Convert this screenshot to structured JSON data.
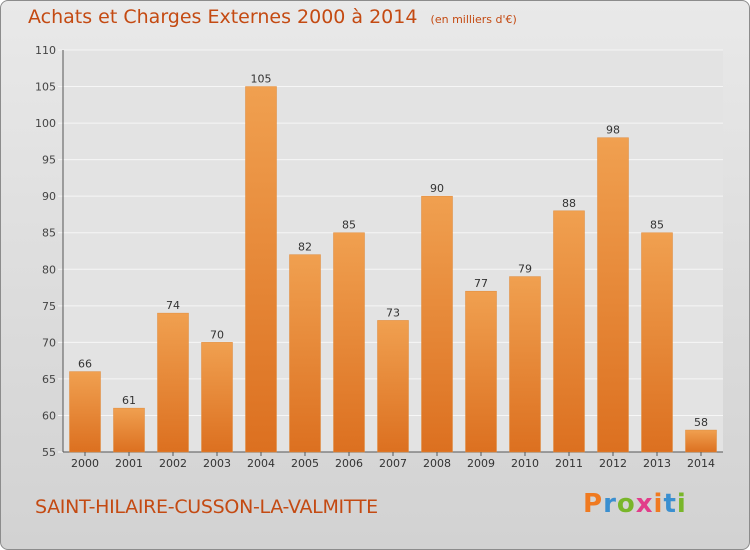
{
  "chart_data": {
    "type": "bar",
    "title": "Achats et Charges Externes 2000 à 2014",
    "subtitle": "(en milliers d'€)",
    "categories": [
      "2000",
      "2001",
      "2002",
      "2003",
      "2004",
      "2005",
      "2006",
      "2007",
      "2008",
      "2009",
      "2010",
      "2011",
      "2012",
      "2013",
      "2014"
    ],
    "values": [
      66,
      61,
      74,
      70,
      105,
      82,
      85,
      73,
      90,
      77,
      79,
      88,
      98,
      85,
      58
    ],
    "ylim": [
      55,
      110
    ],
    "yticks": [
      55,
      60,
      65,
      70,
      75,
      80,
      85,
      90,
      95,
      100,
      105,
      110
    ],
    "grid": true,
    "bar_color": "#f0a050",
    "bar_color_dark": "#dc7020"
  },
  "commune_name": "SAINT-HILAIRE-CUSSON-LA-VALMITTE",
  "logo": {
    "text": "Proxiti",
    "colors": [
      "#f07a20",
      "#3a8fd0",
      "#79b62a",
      "#e23d8a",
      "#f07a20",
      "#3a8fd0",
      "#79b62a"
    ]
  },
  "colors": {
    "accent": "#c44a12"
  }
}
